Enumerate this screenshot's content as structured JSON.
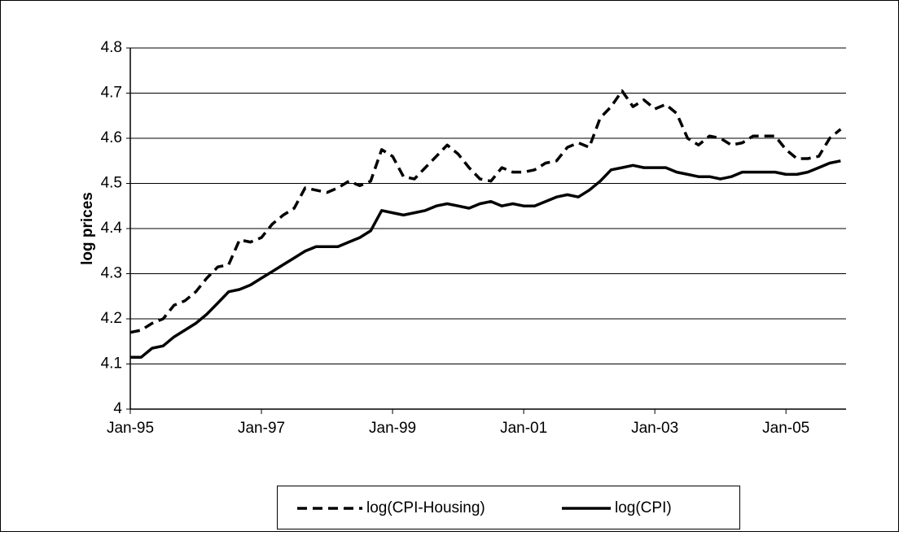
{
  "chart_data": {
    "type": "line",
    "y_label": "log prices",
    "categories": [
      "Jan-95",
      null,
      null,
      null,
      null,
      null,
      null,
      null,
      null,
      null,
      null,
      null,
      "Jan-97",
      null,
      null,
      null,
      null,
      null,
      null,
      null,
      null,
      null,
      null,
      null,
      "Jan-99",
      null,
      null,
      null,
      null,
      null,
      null,
      null,
      null,
      null,
      null,
      null,
      "Jan-01",
      null,
      null,
      null,
      null,
      null,
      null,
      null,
      null,
      null,
      null,
      null,
      "Jan-03",
      null,
      null,
      null,
      null,
      null,
      null,
      null,
      null,
      null,
      null,
      null,
      "Jan-05",
      null,
      null,
      null,
      null,
      null
    ],
    "series": [
      {
        "name": "log(CPI-Housing)",
        "color": "#000000",
        "line_style": "dashed",
        "values": [
          4.17,
          4.175,
          4.19,
          4.2,
          4.23,
          4.24,
          4.26,
          4.29,
          4.315,
          4.32,
          4.375,
          4.37,
          4.38,
          4.41,
          4.43,
          4.445,
          4.49,
          4.485,
          4.48,
          4.49,
          4.505,
          4.495,
          4.505,
          4.575,
          4.56,
          4.515,
          4.51,
          4.535,
          4.56,
          4.585,
          4.565,
          4.535,
          4.51,
          4.505,
          4.535,
          4.525,
          4.525,
          4.53,
          4.545,
          4.55,
          4.58,
          4.59,
          4.58,
          4.645,
          4.67,
          4.705,
          4.67,
          4.685,
          4.665,
          4.675,
          4.655,
          4.6,
          4.585,
          4.605,
          4.6,
          4.585,
          4.59,
          4.605,
          4.605,
          4.605,
          4.575,
          4.555,
          4.555,
          4.56,
          4.6,
          4.62
        ]
      },
      {
        "name": "log(CPI)",
        "color": "#000000",
        "line_style": "solid",
        "values": [
          4.115,
          4.115,
          4.135,
          4.14,
          4.16,
          4.175,
          4.19,
          4.21,
          4.235,
          4.26,
          4.265,
          4.275,
          4.29,
          4.305,
          4.32,
          4.335,
          4.35,
          4.36,
          4.36,
          4.36,
          4.37,
          4.38,
          4.395,
          4.44,
          4.435,
          4.43,
          4.435,
          4.44,
          4.45,
          4.455,
          4.45,
          4.445,
          4.455,
          4.46,
          4.45,
          4.455,
          4.45,
          4.45,
          4.46,
          4.47,
          4.475,
          4.47,
          4.485,
          4.505,
          4.53,
          4.535,
          4.54,
          4.535,
          4.535,
          4.535,
          4.525,
          4.52,
          4.515,
          4.515,
          4.51,
          4.515,
          4.525,
          4.525,
          4.525,
          4.525,
          4.52,
          4.52,
          4.525,
          4.535,
          4.545,
          4.55
        ]
      }
    ],
    "ylim": [
      4,
      4.8
    ],
    "yticks": [
      4,
      4.1,
      4.2,
      4.3,
      4.4,
      4.5,
      4.6,
      4.7,
      4.8
    ],
    "grid": true,
    "legend": "bottom"
  }
}
